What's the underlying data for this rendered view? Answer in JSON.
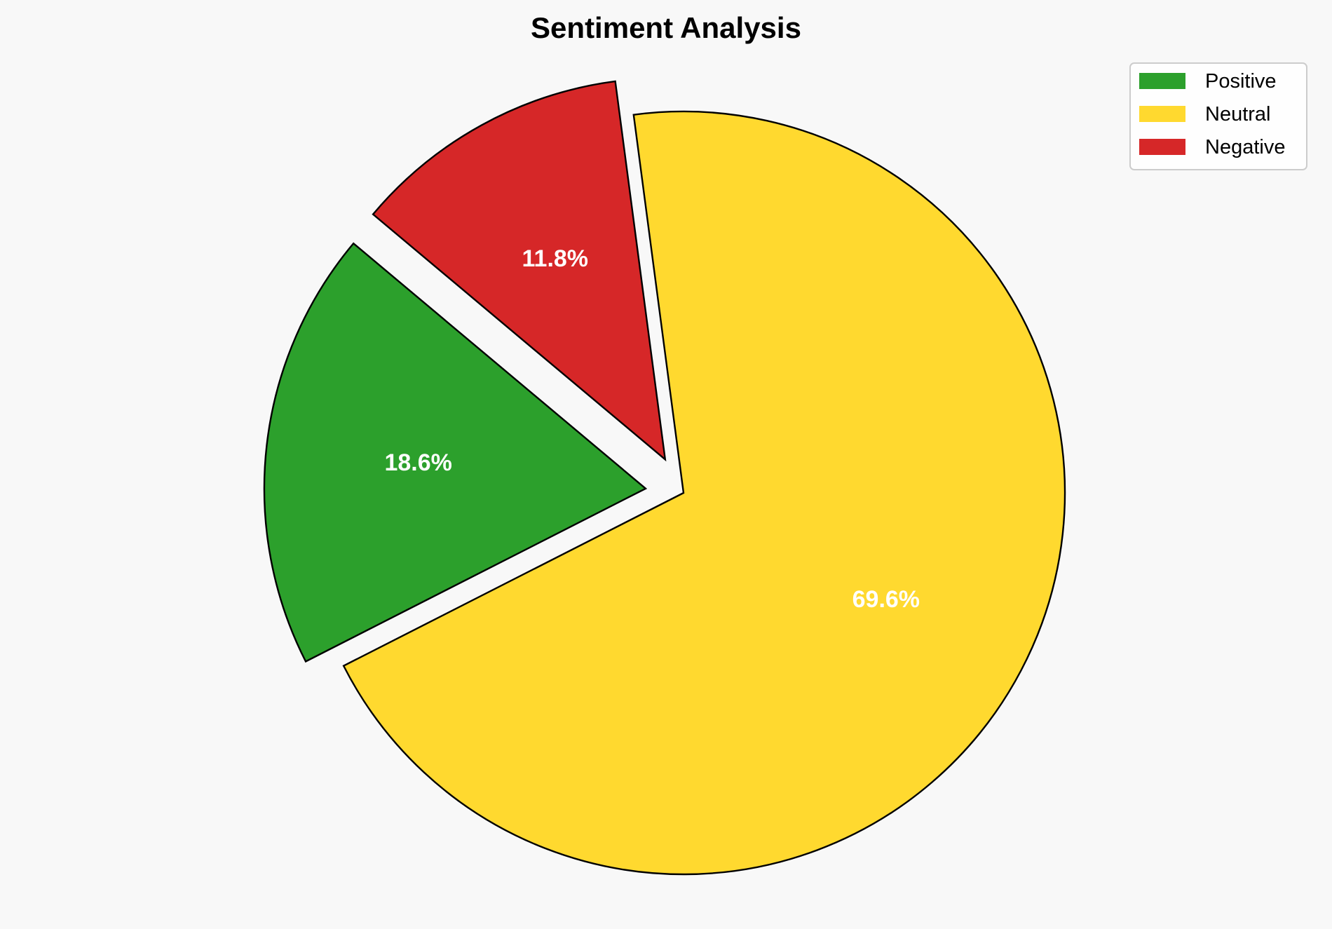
{
  "chart_data": {
    "type": "pie",
    "title": "Sentiment Analysis",
    "categories": [
      "Positive",
      "Neutral",
      "Negative"
    ],
    "values": [
      18.6,
      69.6,
      11.8
    ],
    "labels": [
      "18.6%",
      "69.6%",
      "11.8%"
    ],
    "colors": [
      "#2ca02c",
      "#ffd92f",
      "#d62728"
    ],
    "explode": [
      0.1,
      0,
      0.1
    ],
    "start_angle": 140,
    "direction": "counterclockwise",
    "edge_color": "#000000",
    "label_color": "#ffffff",
    "legend_placement": "top-right",
    "background": "#f8f8f8"
  }
}
